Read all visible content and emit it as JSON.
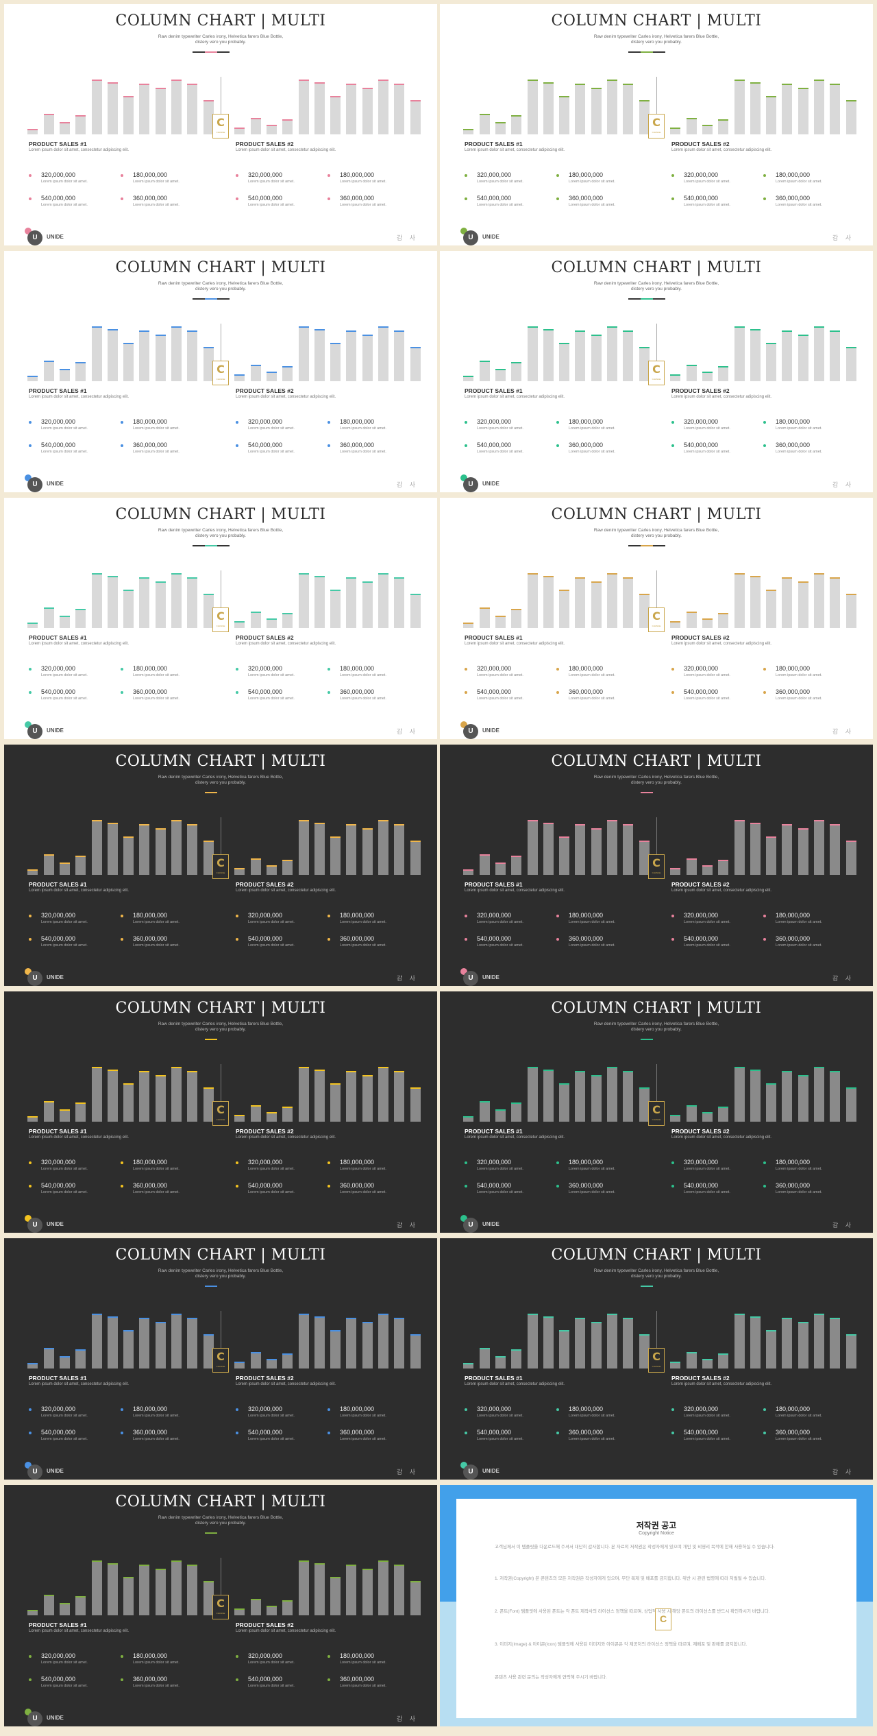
{
  "slide_common": {
    "title": "COLUMN CHART | MULTI",
    "subtitle_line1": "Raw denim typewriter Carles irony, Helvetica farers Blue Bottle,",
    "subtitle_line2": "distery vero you probably.",
    "logo_glyph": "C",
    "logo_sub": "CHANGE",
    "brand_initial": "U",
    "brand_name": "UNIDE",
    "footnote": "감 사"
  },
  "sections": [
    {
      "title": "PRODUCT SALES #1",
      "desc": "Lorem ipsum dolor sit amet, consectetur adipiscing elit.",
      "stats": [
        {
          "value": "320,000,000",
          "label": "Lorem ipsum dolor sit amet."
        },
        {
          "value": "180,000,000",
          "label": "Lorem ipsum dolor sit amet."
        },
        {
          "value": "540,000,000",
          "label": "Lorem ipsum dolor sit amet."
        },
        {
          "value": "360,000,000",
          "label": "Lorem ipsum dolor sit amet."
        }
      ]
    },
    {
      "title": "PRODUCT SALES #2",
      "desc": "Lorem ipsum dolor sit amet, consectetur adipiscing elit.",
      "stats": [
        {
          "value": "320,000,000",
          "label": "Lorem ipsum dolor sit amet."
        },
        {
          "value": "180,000,000",
          "label": "Lorem ipsum dolor sit amet."
        },
        {
          "value": "540,000,000",
          "label": "Lorem ipsum dolor sit amet."
        },
        {
          "value": "360,000,000",
          "label": "Lorem ipsum dolor sit amet."
        }
      ]
    }
  ],
  "chart_data": [
    {
      "type": "bar",
      "values": [
        10,
        38,
        22,
        35,
        100,
        95,
        70,
        92,
        85,
        100,
        92,
        62
      ],
      "ylim": [
        0,
        100
      ]
    },
    {
      "type": "bar",
      "values": [
        12,
        30,
        18,
        28,
        100,
        95,
        70,
        92,
        85,
        100,
        92,
        62
      ],
      "ylim": [
        0,
        100
      ]
    }
  ],
  "slides": [
    {
      "theme": "light",
      "accent": "#e8829c"
    },
    {
      "theme": "light",
      "accent": "#7fb041"
    },
    {
      "theme": "light",
      "accent": "#4a90e2"
    },
    {
      "theme": "light",
      "accent": "#2cc08c"
    },
    {
      "theme": "light",
      "accent": "#45c9a6"
    },
    {
      "theme": "light",
      "accent": "#d8a54b"
    },
    {
      "theme": "dark",
      "accent": "#f0b64a"
    },
    {
      "theme": "dark",
      "accent": "#e8829c"
    },
    {
      "theme": "dark",
      "accent": "#f3c320"
    },
    {
      "theme": "dark",
      "accent": "#2cc08c"
    },
    {
      "theme": "dark",
      "accent": "#4a90e2"
    },
    {
      "theme": "dark",
      "accent": "#45c9a6"
    },
    {
      "theme": "dark",
      "accent": "#7fb041"
    }
  ],
  "copyright": {
    "title": "저작권 공고",
    "subtitle": "Copyright Notice",
    "paragraphs": [
      "고객님께서 이 템플릿을 다운로드해 주셔서 대단히 감사합니다. 본 자료의 저작권은 작성자에게 있으며 개인 및 비영리 목적에 한해 사용하실 수 있습니다.",
      "1. 저작권(Copyright) 본 콘텐츠의 모든 저작권은 작성자에게 있으며, 무단 복제 및 배포를 금지합니다. 위반 시 관련 법령에 따라 처벌될 수 있습니다.",
      "2. 폰트(Font) 템플릿에 사용된 폰트는 각 폰트 제작사의 라이선스 정책을 따르며, 상업적 사용 시 해당 폰트의 라이선스를 반드시 확인하시기 바랍니다.",
      "3. 이미지(Image) & 아이콘(Icon) 템플릿에 사용된 이미지와 아이콘은 각 제공처의 라이선스 정책을 따르며, 재배포 및 판매를 금지합니다.",
      "콘텐츠 사용 관련 문의는 작성자에게 연락해 주시기 바랍니다."
    ]
  }
}
